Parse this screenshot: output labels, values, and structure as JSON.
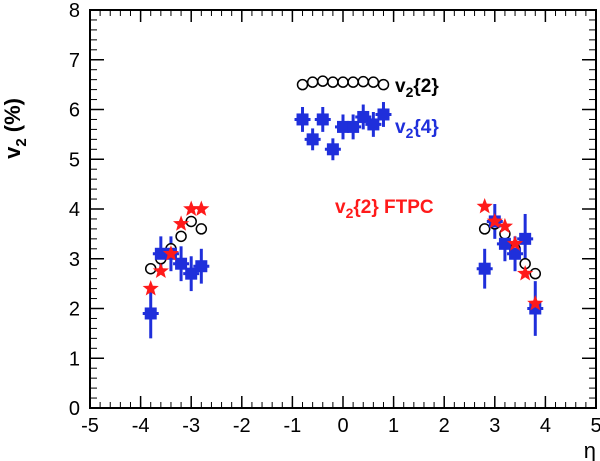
{
  "chart_data": {
    "type": "scatter",
    "xlabel": "η",
    "ylabel_main": "v",
    "ylabel_sub": "2",
    "ylabel_tail": " (%)",
    "xlim": [
      -5,
      5
    ],
    "ylim": [
      0,
      8
    ],
    "xticks": [
      -5,
      -4,
      -3,
      -2,
      -1,
      0,
      1,
      2,
      3,
      4,
      5
    ],
    "yticks": [
      0,
      1,
      2,
      3,
      4,
      5,
      6,
      7,
      8
    ],
    "grid": false,
    "series": [
      {
        "name": "v2{2}",
        "label_main": "v",
        "label_sub": "2",
        "label_tail": "{2}",
        "marker": "open-circle",
        "color": "#000000",
        "x": [
          -0.8,
          -0.6,
          -0.4,
          -0.2,
          0.0,
          0.2,
          0.4,
          0.6,
          0.8,
          -3.8,
          -3.6,
          -3.4,
          -3.2,
          -3.0,
          -2.8,
          2.8,
          3.0,
          3.2,
          3.4,
          3.6,
          3.8
        ],
        "y": [
          6.5,
          6.55,
          6.57,
          6.55,
          6.55,
          6.55,
          6.56,
          6.55,
          6.5,
          2.8,
          3.0,
          3.2,
          3.45,
          3.75,
          3.6,
          3.6,
          3.7,
          3.5,
          3.2,
          2.9,
          2.7
        ],
        "yerr": [
          0.03,
          0.03,
          0.03,
          0.03,
          0.03,
          0.03,
          0.03,
          0.03,
          0.03,
          0.05,
          0.05,
          0.05,
          0.05,
          0.05,
          0.05,
          0.05,
          0.05,
          0.05,
          0.05,
          0.05,
          0.05
        ]
      },
      {
        "name": "v2{4}",
        "label_main": "v",
        "label_sub": "2",
        "label_tail": "{4}",
        "marker": "filled-square",
        "color": "#1f2fdb",
        "x": [
          -0.8,
          -0.6,
          -0.4,
          -0.2,
          0.0,
          0.2,
          0.4,
          0.6,
          0.8,
          -3.8,
          -3.6,
          -3.4,
          -3.2,
          -3.0,
          -2.8,
          2.8,
          3.0,
          3.2,
          3.4,
          3.6,
          3.8
        ],
        "y": [
          5.8,
          5.4,
          5.8,
          5.2,
          5.65,
          5.65,
          5.85,
          5.7,
          5.9,
          1.9,
          3.1,
          3.1,
          2.9,
          2.7,
          2.85,
          2.8,
          3.75,
          3.3,
          3.1,
          3.4,
          2.0
        ],
        "yerr": [
          0.25,
          0.22,
          0.25,
          0.22,
          0.25,
          0.25,
          0.25,
          0.25,
          0.25,
          0.5,
          0.35,
          0.35,
          0.35,
          0.35,
          0.35,
          0.4,
          0.35,
          0.35,
          0.35,
          0.5,
          0.55
        ]
      },
      {
        "name": "v2{2} FTPC",
        "label_main": "v",
        "label_sub": "2",
        "label_tail": "{2} FTPC",
        "marker": "star",
        "color": "#ff1a1a",
        "x": [
          -3.8,
          -3.6,
          -3.4,
          -3.2,
          -3.0,
          -2.8,
          2.8,
          3.0,
          3.2,
          3.4,
          3.6,
          3.8
        ],
        "y": [
          2.4,
          2.75,
          3.1,
          3.7,
          4.0,
          4.0,
          4.05,
          3.75,
          3.65,
          3.3,
          2.7,
          2.1
        ],
        "yerr": [
          0.05,
          0.05,
          0.05,
          0.05,
          0.05,
          0.05,
          0.05,
          0.05,
          0.05,
          0.05,
          0.05,
          0.05
        ]
      }
    ]
  }
}
